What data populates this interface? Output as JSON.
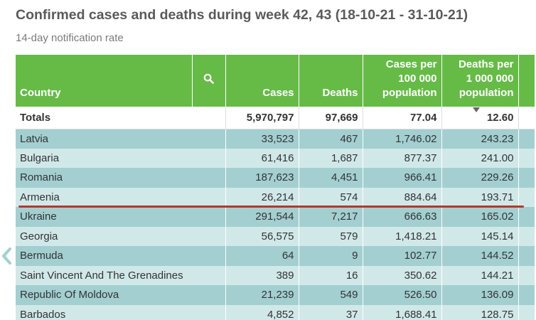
{
  "title": "Confirmed cases and deaths during week 42, 43 (18-10-21 - 31-10-21)",
  "subtitle": "14-day notification rate",
  "header": {
    "country": "Country",
    "cases": "Cases",
    "deaths": "Deaths",
    "cases_per_100k": [
      "Cases per",
      "100 000",
      "population"
    ],
    "deaths_per_1m": [
      "Deaths per",
      "1 000 000",
      "population"
    ]
  },
  "icons": {
    "search": "search-icon",
    "sort": "sort-descending-icon",
    "scroll_left": "chevron-left-icon"
  },
  "colors": {
    "header_bg": "#66bb47",
    "row_dark": "#a3cfd1",
    "row_light": "#d1e8e9",
    "highlight_line": "#b0392e"
  },
  "totals": {
    "label": "Totals",
    "cases": "5,970,797",
    "deaths": "97,669",
    "cases_per_100k": "77.04",
    "deaths_per_1m": "12.60"
  },
  "rows": [
    {
      "country": "Latvia",
      "cases": "33,523",
      "deaths": "467",
      "cases_per_100k": "1,746.02",
      "deaths_per_1m": "243.23"
    },
    {
      "country": "Bulgaria",
      "cases": "61,416",
      "deaths": "1,687",
      "cases_per_100k": "877.37",
      "deaths_per_1m": "241.00"
    },
    {
      "country": "Romania",
      "cases": "187,623",
      "deaths": "4,451",
      "cases_per_100k": "966.41",
      "deaths_per_1m": "229.26"
    },
    {
      "country": "Armenia",
      "cases": "26,214",
      "deaths": "574",
      "cases_per_100k": "884.64",
      "deaths_per_1m": "193.71"
    },
    {
      "country": "Ukraine",
      "cases": "291,544",
      "deaths": "7,217",
      "cases_per_100k": "666.63",
      "deaths_per_1m": "165.02"
    },
    {
      "country": "Georgia",
      "cases": "56,575",
      "deaths": "579",
      "cases_per_100k": "1,418.21",
      "deaths_per_1m": "145.14"
    },
    {
      "country": "Bermuda",
      "cases": "64",
      "deaths": "9",
      "cases_per_100k": "102.77",
      "deaths_per_1m": "144.52"
    },
    {
      "country": "Saint Vincent And The Grenadines",
      "cases": "389",
      "deaths": "16",
      "cases_per_100k": "350.62",
      "deaths_per_1m": "144.21"
    },
    {
      "country": "Republic Of Moldova",
      "cases": "21,239",
      "deaths": "549",
      "cases_per_100k": "526.50",
      "deaths_per_1m": "136.09"
    },
    {
      "country": "Barbados",
      "cases": "4,852",
      "deaths": "37",
      "cases_per_100k": "1,688.41",
      "deaths_per_1m": "128.75"
    }
  ]
}
